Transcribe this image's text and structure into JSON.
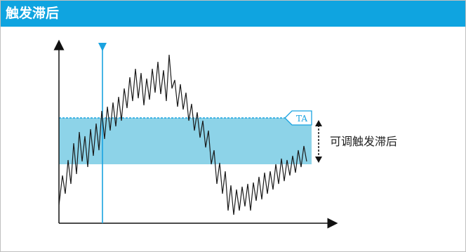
{
  "header": {
    "title": "触发滞后"
  },
  "diagram": {
    "marker_label": "TA",
    "annotation": "可调触发滞后"
  },
  "colors": {
    "header_bg": "#0fa4e0",
    "band_fill": "#8dd3e8",
    "accent": "#1aa3e0",
    "signal": "#1a1a1a"
  }
}
